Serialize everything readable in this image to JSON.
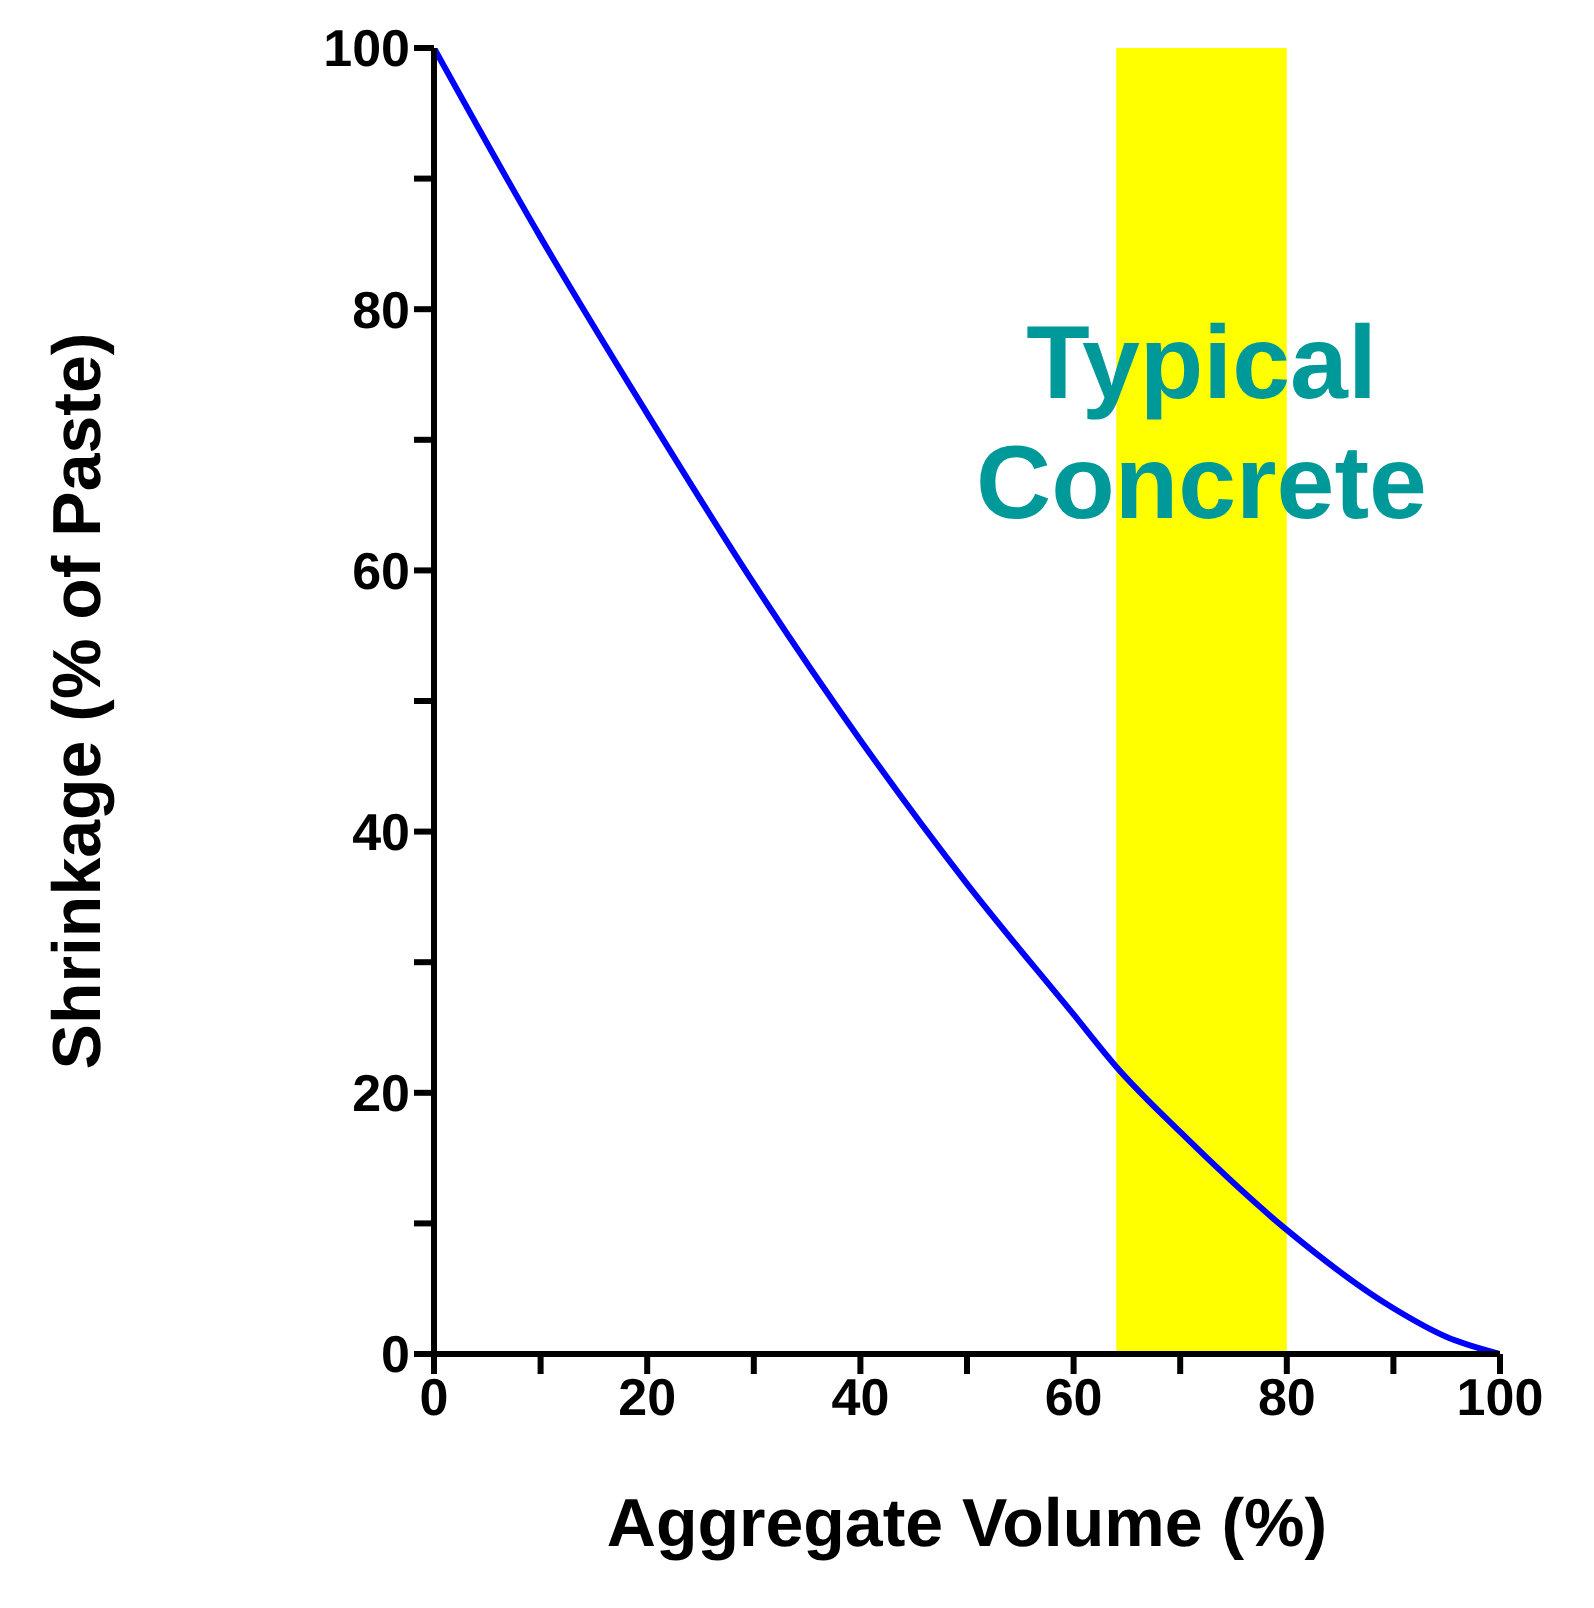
{
  "chart_data": {
    "type": "line",
    "xlabel": "Aggregate Volume (%)",
    "ylabel": "Shrinkage (% of Paste)",
    "series": [
      {
        "color": "#0000ff",
        "x": [
          0,
          10,
          20,
          30,
          40,
          50,
          60,
          64,
          70,
          80,
          90,
          95,
          100
        ],
        "values": [
          100,
          85.5,
          72,
          59,
          47,
          36,
          26,
          22,
          17,
          9.5,
          3.5,
          1.3,
          0
        ]
      }
    ],
    "xlim": [
      0,
      100
    ],
    "ylim": [
      0,
      100
    ],
    "xticks": [
      0,
      {
        "value": 10,
        "label": null
      },
      20,
      {
        "value": 30,
        "label": null
      },
      40,
      {
        "value": 50,
        "label": null
      },
      60,
      {
        "value": 70,
        "label": null
      },
      80,
      {
        "value": 90,
        "label": null
      },
      100
    ],
    "yticks": [
      0,
      {
        "value": 10,
        "label": null
      },
      20,
      {
        "value": 30,
        "label": null
      },
      40,
      {
        "value": 50,
        "label": null
      },
      60,
      {
        "value": 70,
        "label": null
      },
      80,
      {
        "value": 90,
        "label": null
      },
      100
    ],
    "bands": [
      {
        "axis": "x",
        "from": 64,
        "to": 80,
        "label": "Typical Concrete",
        "color": "#ffff00"
      }
    ],
    "grid": false,
    "marker": "none",
    "line_style": "solid"
  }
}
